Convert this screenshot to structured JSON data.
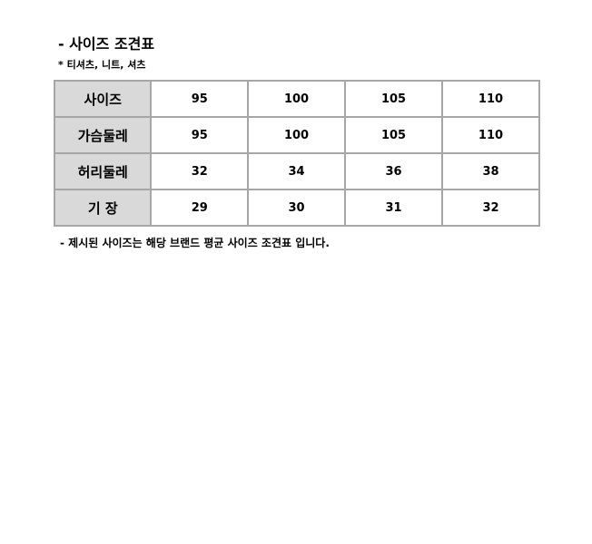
{
  "title": "- 사이즈 조견표",
  "subtitle": "* 티셔츠, 니트, 셔츠",
  "rows": [
    {
      "label": "사이즈",
      "values": [
        "95",
        "100",
        "105",
        "110"
      ]
    },
    {
      "label": "가슴둘레",
      "values": [
        "95",
        "100",
        "105",
        "110"
      ]
    },
    {
      "label": "허리둘레",
      "values": [
        "32",
        "34",
        "36",
        "38"
      ]
    },
    {
      "label": "기 장",
      "values": [
        "29",
        "30",
        "31",
        "32"
      ]
    }
  ],
  "note": "- 제시된 사이즈는 해당 브랜드 평균 사이즈 조견표 입니다."
}
